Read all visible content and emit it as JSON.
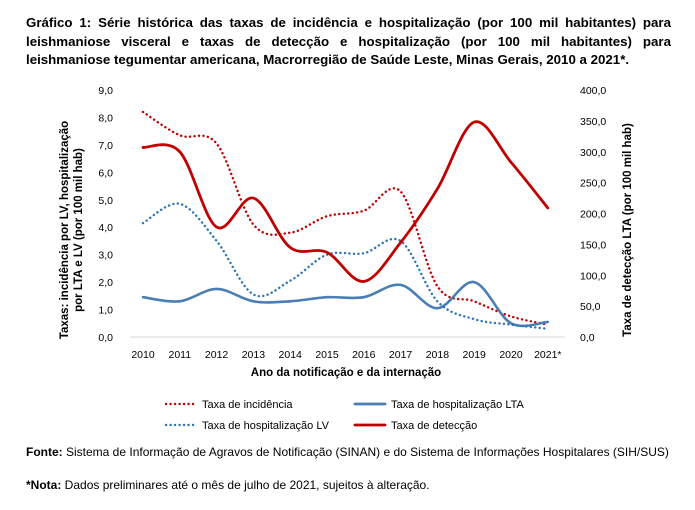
{
  "title": "Gráfico 1: Série histórica das taxas de incidência e hospitalização (por 100 mil habitantes) para leishmaniose visceral e taxas de detecção e hospitalização (por 100 mil habitantes) para leishmaniose tegumentar americana, Macrorregião de Saúde Leste, Minas Gerais, 2010 a 2021*.",
  "chart_data": {
    "type": "line",
    "categories": [
      "2010",
      "2011",
      "2012",
      "2013",
      "2014",
      "2015",
      "2016",
      "2017",
      "2018",
      "2019",
      "2020",
      "2021*"
    ],
    "xlabel": "Ano da notificação e da internação",
    "ylabel_left": "Taxas: incidência por LV, hospitalização por LTA e LV (por 100 mil hab)",
    "ylabel_right": "Taxa de detecção LTA (por 100 mil hab)",
    "ylim_left": [
      0,
      9
    ],
    "yticks_left": [
      "0,0",
      "1,0",
      "2,0",
      "3,0",
      "4,0",
      "5,0",
      "6,0",
      "7,0",
      "8,0",
      "9,0"
    ],
    "ylim_right": [
      0,
      400
    ],
    "yticks_right": [
      "0,0",
      "50,0",
      "100,0",
      "150,0",
      "200,0",
      "250,0",
      "300,0",
      "350,0",
      "400,0"
    ],
    "series": [
      {
        "name": "Taxa de incidência",
        "axis": "left",
        "style": "dotted",
        "color": "#c00000",
        "values": [
          8.2,
          7.35,
          7.05,
          4.1,
          3.8,
          4.4,
          4.6,
          5.3,
          1.85,
          1.3,
          0.75,
          0.45
        ]
      },
      {
        "name": "Taxa de hospitalização LTA",
        "axis": "left",
        "style": "solid",
        "color": "#4a7eb4",
        "values": [
          1.45,
          1.3,
          1.75,
          1.3,
          1.3,
          1.45,
          1.45,
          1.9,
          1.05,
          2.0,
          0.5,
          0.55
        ]
      },
      {
        "name": "Taxa de hospitalização LV",
        "axis": "left",
        "style": "dotted",
        "color": "#2e75b6",
        "values": [
          4.15,
          4.85,
          3.5,
          1.55,
          2.05,
          3.0,
          3.05,
          3.5,
          1.3,
          0.65,
          0.45,
          0.3
        ]
      },
      {
        "name": "Taxa de detecção",
        "axis": "right",
        "style": "solid",
        "color": "#c00000",
        "values": [
          307,
          300,
          178,
          225,
          145,
          137,
          90,
          153,
          240,
          348,
          283,
          209
        ]
      }
    ],
    "legend": [
      {
        "label": "Taxa de incidência",
        "series": 0
      },
      {
        "label": "Taxa de hospitalização LTA",
        "series": 1
      },
      {
        "label": "Taxa de hospitalização LV",
        "series": 2
      },
      {
        "label": "Taxa de detecção",
        "series": 3
      }
    ]
  },
  "footer": {
    "source_label": "Fonte:",
    "source_text": " Sistema de Informação de Agravos de Notificação (SINAN) e do Sistema de Informações Hospitalares (SIH/SUS)",
    "note_label": "*Nota:",
    "note_text": " Dados preliminares até o mês de julho de 2021, sujeitos à alteração."
  }
}
